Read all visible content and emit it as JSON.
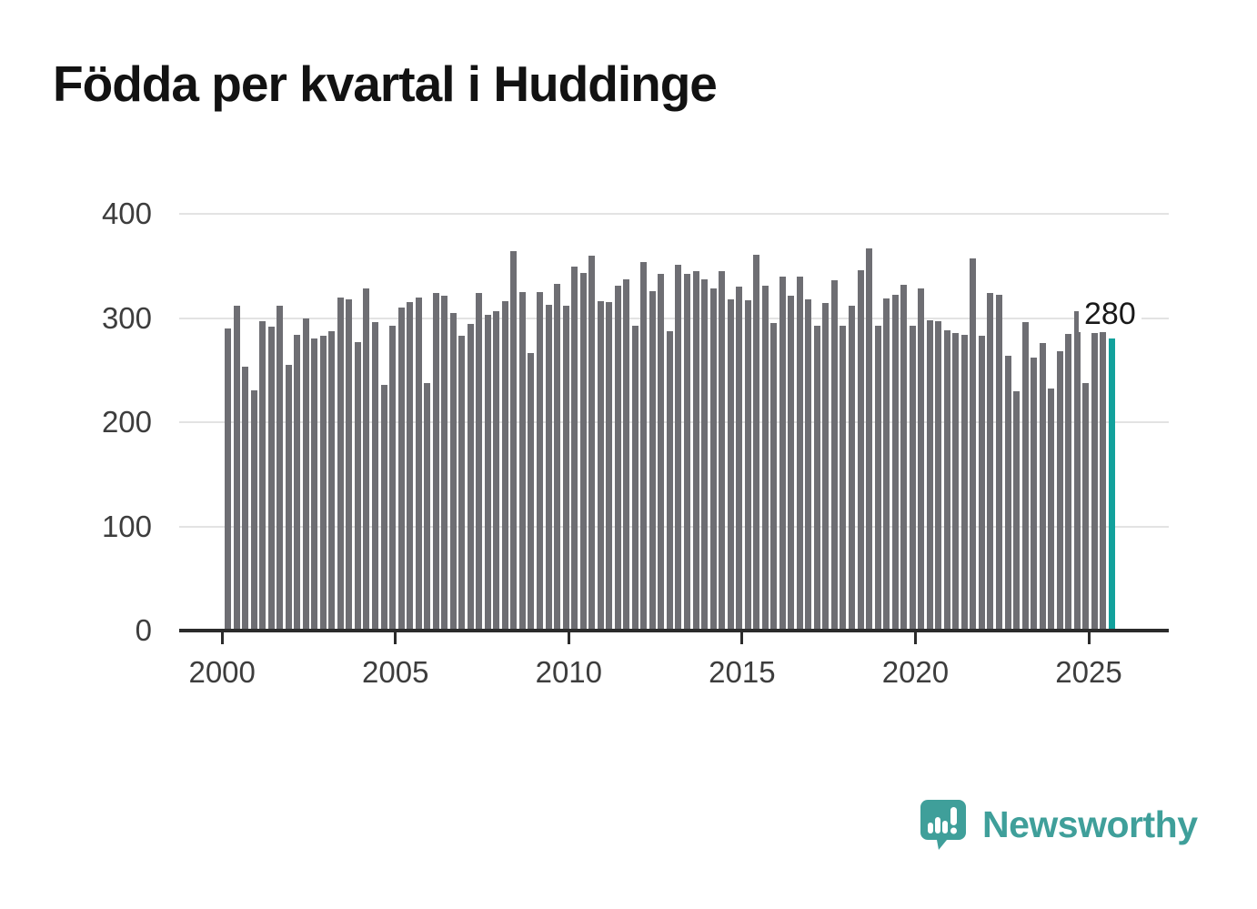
{
  "title": "Födda per kvartal i Huddinge",
  "chart_data": {
    "type": "bar",
    "x_unit": "quarter",
    "x_start": "2000-Q1",
    "x_end": "2025-Q3",
    "x_tick_labels": [
      "2000",
      "2005",
      "2010",
      "2015",
      "2020",
      "2025"
    ],
    "y_tick_labels": [
      "0",
      "100",
      "200",
      "300",
      "400"
    ],
    "ylim": [
      0,
      400
    ],
    "grid": true,
    "legend": "none",
    "bar_color": "#6e6e73",
    "highlight_color": "#12a19c",
    "highlight_index": 102,
    "highlight_label": "280",
    "values": [
      290,
      312,
      253,
      231,
      297,
      292,
      312,
      255,
      284,
      300,
      280,
      283,
      287,
      320,
      318,
      277,
      328,
      296,
      236,
      293,
      310,
      315,
      320,
      238,
      324,
      321,
      305,
      283,
      294,
      324,
      303,
      307,
      316,
      364,
      325,
      266,
      325,
      313,
      333,
      312,
      349,
      343,
      360,
      316,
      315,
      331,
      337,
      293,
      354,
      326,
      342,
      287,
      351,
      342,
      345,
      337,
      328,
      345,
      318,
      330,
      317,
      361,
      331,
      295,
      340,
      321,
      340,
      318,
      293,
      314,
      336,
      293,
      312,
      346,
      367,
      293,
      319,
      322,
      332,
      293,
      328,
      298,
      297,
      288,
      286,
      284,
      357,
      283,
      324,
      322,
      264,
      230,
      296,
      262,
      276,
      232,
      268,
      285,
      307,
      238,
      286,
      290,
      280
    ]
  },
  "footer": {
    "brand": "Newsworthy",
    "brand_color": "#3f9f9a"
  }
}
